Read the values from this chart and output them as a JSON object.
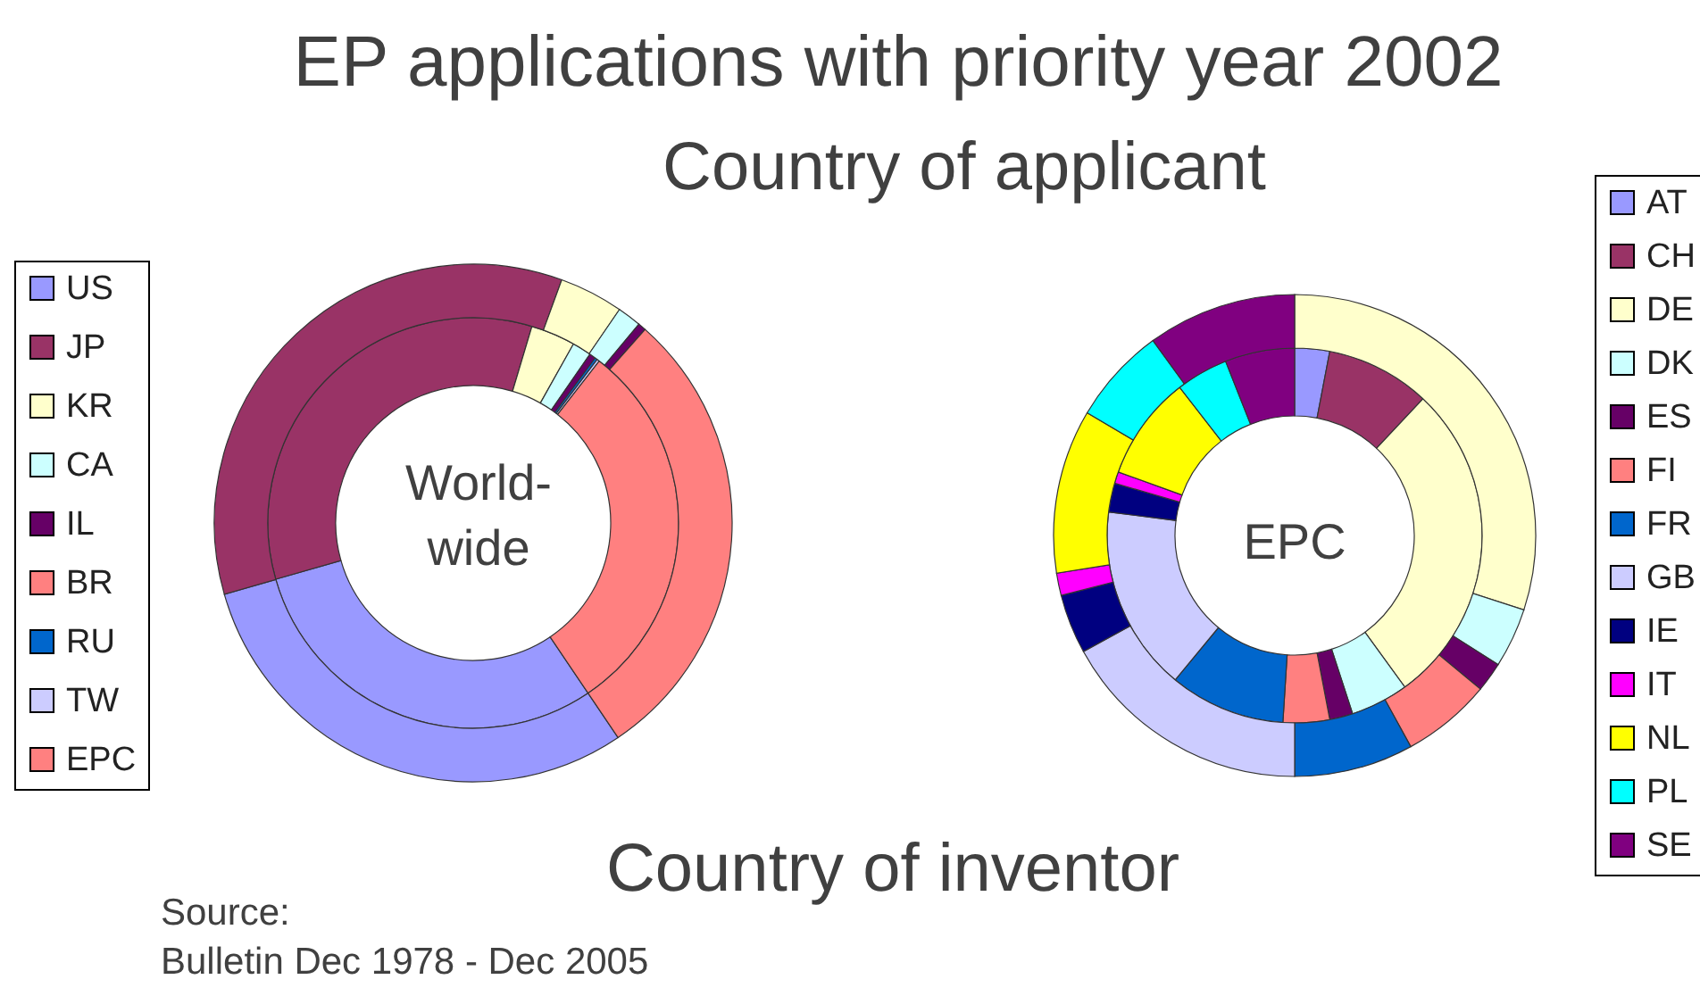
{
  "chart_data": [
    {
      "type": "donut",
      "title": "EP applications with priority year 2002",
      "categories": [
        "US",
        "JP",
        "KR",
        "CA",
        "IL",
        "BR",
        "RU",
        "TW",
        "EPC"
      ],
      "colors": [
        "#9999ff",
        "#993366",
        "#ffffcc",
        "#ccffff",
        "#660066",
        "#ff8080",
        "#0066cc",
        "#ccccff",
        "#ff8080"
      ],
      "series": [
        {
          "values": [
            30,
            34,
            3.5,
            1.5,
            0.5,
            null,
            0.2,
            0.2,
            30
          ]
        },
        {
          "values": [
            30,
            35,
            4,
            1.5,
            0.5,
            null,
            null,
            null,
            29
          ]
        }
      ],
      "legend": "left",
      "annotations": [
        "Country of applicant",
        "Country of inventor",
        "World-\nwide",
        "Source:\nBulletin Dec 1978 - Dec 2005"
      ]
    },
    {
      "type": "donut",
      "categories": [
        "AT",
        "CH",
        "DE",
        "DK",
        "ES",
        "FI",
        "FR",
        "GB",
        "IE",
        "IT",
        "NL",
        "PL",
        "SE"
      ],
      "colors": [
        "#9999ff",
        "#993366",
        "#ffffcc",
        "#ccffff",
        "#660066",
        "#ff8080",
        "#0066cc",
        "#ccccff",
        "#000080",
        "#ff00ff",
        "#ffff00",
        "#00ffff",
        "#800080"
      ],
      "series": [
        {
          "values": [
            3,
            9,
            28,
            5,
            2,
            4,
            10,
            16,
            2.5,
            1,
            9,
            4.5,
            6
          ]
        },
        {
          "values": [
            0,
            0,
            30,
            4,
            2,
            6,
            8,
            17,
            4,
            1.5,
            11,
            6.5,
            10
          ]
        }
      ],
      "legend": "right",
      "annotations": [
        "EPC"
      ]
    }
  ]
}
